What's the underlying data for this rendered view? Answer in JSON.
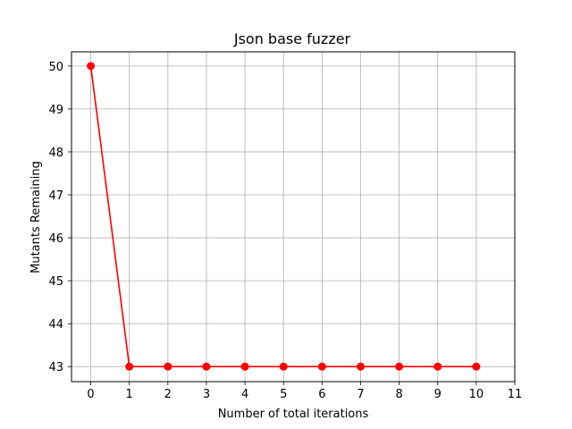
{
  "chart_data": {
    "type": "line",
    "title": "Json base fuzzer",
    "xlabel": "Number of total iterations",
    "ylabel": "Mutants Remaining",
    "grid": true,
    "xlim": [
      -0.5,
      11
    ],
    "ylim": [
      42.65,
      50.33
    ],
    "xticks": [
      0,
      1,
      2,
      3,
      4,
      5,
      6,
      7,
      8,
      9,
      10,
      11
    ],
    "yticks": [
      43,
      44,
      45,
      46,
      47,
      48,
      49,
      50
    ],
    "series": [
      {
        "name": "mutants",
        "color": "#ff0000",
        "marker": "circle",
        "x": [
          0,
          1,
          2,
          3,
          4,
          5,
          6,
          7,
          8,
          9,
          10
        ],
        "y": [
          50,
          43,
          43,
          43,
          43,
          43,
          43,
          43,
          43,
          43,
          43
        ]
      }
    ]
  }
}
